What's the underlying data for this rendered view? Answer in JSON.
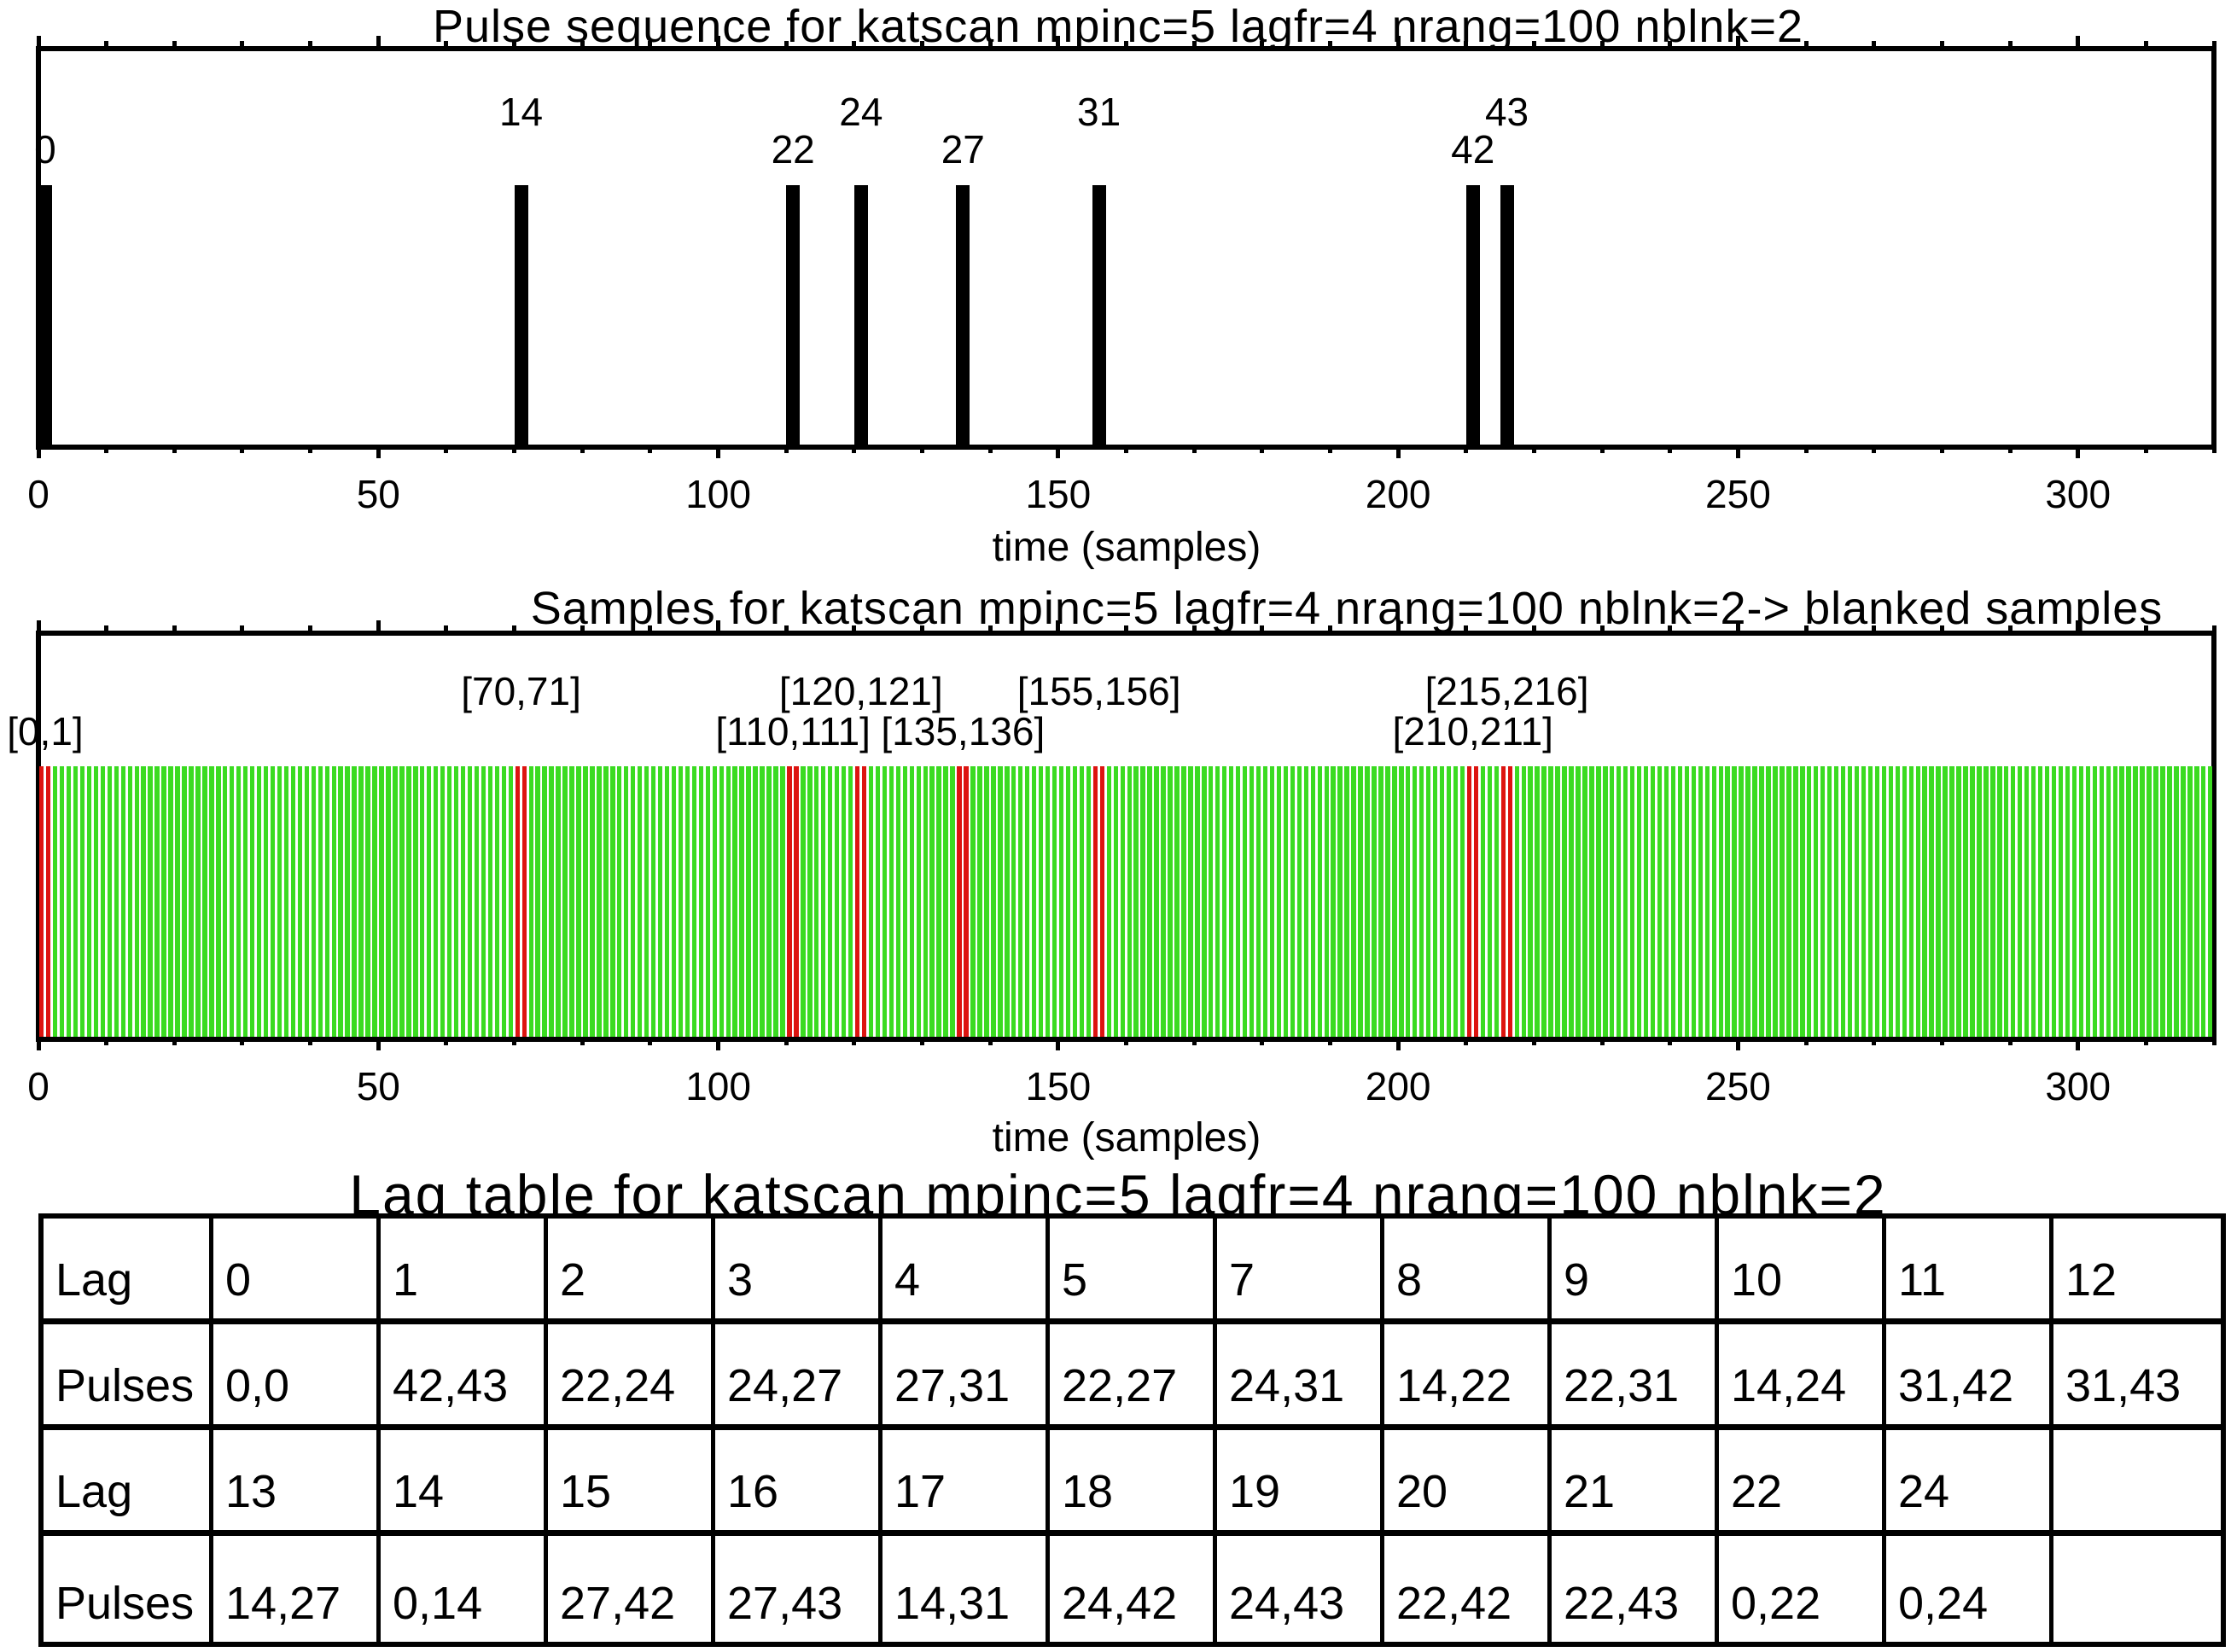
{
  "colors": {
    "foreground": "#000000",
    "sample_green": "#3bdb21",
    "blanked_red": "#dd1410",
    "background": "#ffffff"
  },
  "chart_data": [
    {
      "type": "bar",
      "name": "pulse-sequence",
      "title": "Pulse sequence for katscan mpinc=5 lagfr=4 nrang=100 nblnk=2",
      "xlabel": "time (samples)",
      "xlim": [
        0,
        320
      ],
      "x_major_ticks": [
        0,
        50,
        100,
        150,
        200,
        250,
        300
      ],
      "x_minor_step": 10,
      "grid": false,
      "pulse_numbers": [
        0,
        14,
        22,
        24,
        27,
        31,
        42,
        43
      ],
      "pulse_times_samples": [
        0,
        70,
        110,
        120,
        135,
        155,
        210,
        215
      ],
      "bar_width_samples": 2,
      "bar_color": "#000000"
    },
    {
      "type": "bar",
      "name": "samples",
      "title": "Samples for katscan mpinc=5 lagfr=4 nrang=100 nblnk=2-> blanked samples",
      "xlabel": "time (samples)",
      "xlim": [
        0,
        320
      ],
      "x_major_ticks": [
        0,
        50,
        100,
        150,
        200,
        250,
        300
      ],
      "x_minor_step": 10,
      "grid": false,
      "total_samples": 320,
      "sample_color": "#3bdb21",
      "blanked_color": "#dd1410",
      "blanked_pairs": [
        [
          0,
          1
        ],
        [
          70,
          71
        ],
        [
          110,
          111
        ],
        [
          120,
          121
        ],
        [
          135,
          136
        ],
        [
          155,
          156
        ],
        [
          210,
          211
        ],
        [
          215,
          216
        ]
      ],
      "blanked_labels": [
        "[0,1]",
        "[70,71]",
        "[110,111]",
        "[120,121]",
        "[135,136]",
        "[155,156]",
        "[210,211]",
        "[215,216]"
      ]
    },
    {
      "type": "table",
      "name": "lag-table",
      "title": "Lag table for katscan mpinc=5 lagfr=4 nrang=100 nblnk=2",
      "rows": [
        [
          "Lag",
          "0",
          "1",
          "2",
          "3",
          "4",
          "5",
          "7",
          "8",
          "9",
          "10",
          "11",
          "12"
        ],
        [
          "Pulses",
          "0,0",
          "42,43",
          "22,24",
          "24,27",
          "27,31",
          "22,27",
          "24,31",
          "14,22",
          "22,31",
          "14,24",
          "31,42",
          "31,43"
        ],
        [
          "Lag",
          "13",
          "14",
          "15",
          "16",
          "17",
          "18",
          "19",
          "20",
          "21",
          "22",
          "24",
          ""
        ],
        [
          "Pulses",
          "14,27",
          "0,14",
          "27,42",
          "27,43",
          "14,31",
          "24,42",
          "24,43",
          "22,42",
          "22,43",
          "0,22",
          "0,24",
          ""
        ]
      ]
    }
  ]
}
